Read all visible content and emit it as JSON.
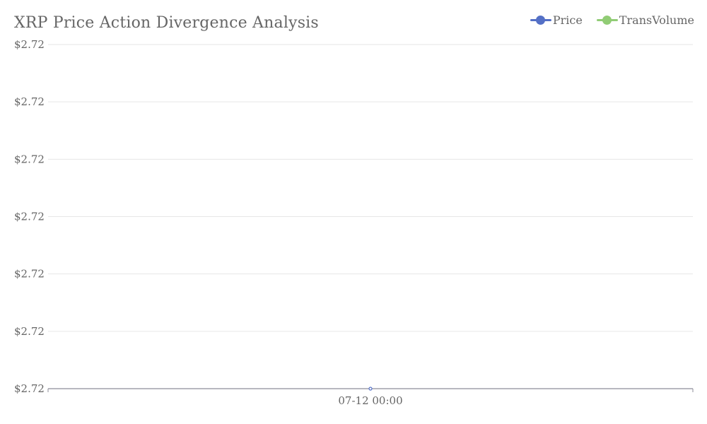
{
  "chart_data": {
    "type": "line",
    "title": "XRP Price Action Divergence Analysis",
    "xlabel": "",
    "ylabel": "",
    "categories": [
      "07-12 00:00"
    ],
    "y_tick_labels": [
      "$2.72",
      "$2.72",
      "$2.72",
      "$2.72",
      "$2.72",
      "$2.72",
      "$2.72"
    ],
    "grid": true,
    "legend_position": "top-right",
    "series": [
      {
        "name": "Price",
        "values": [
          2.72
        ],
        "color": "#5470c6"
      },
      {
        "name": "TransVolume",
        "values": [
          null
        ],
        "color": "#91cc75"
      }
    ]
  }
}
